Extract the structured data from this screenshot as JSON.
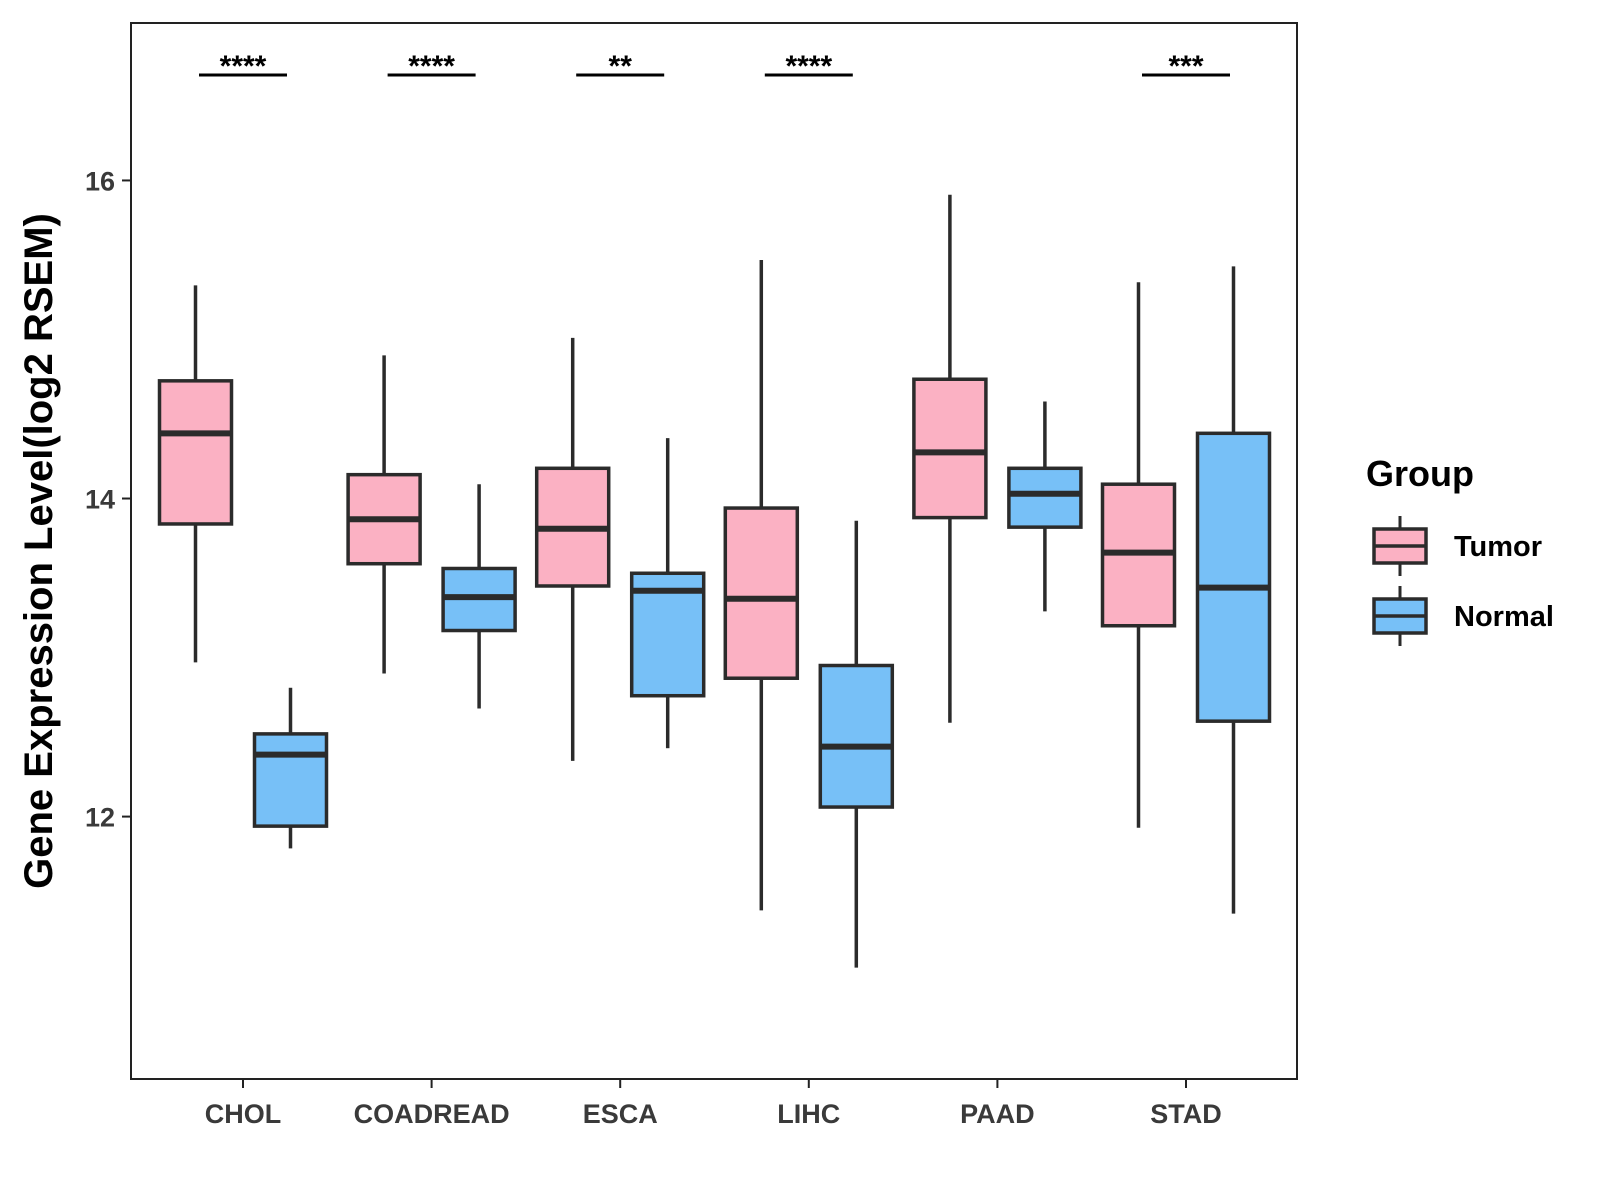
{
  "chart_data": {
    "type": "boxplot",
    "title": "",
    "xlabel": "",
    "ylabel": "Gene Expression Level(log2 RSEM)",
    "ylim": [
      10.35,
      16.99
    ],
    "yticks": [
      12,
      14,
      16
    ],
    "grid": false,
    "legend_position": "right",
    "legend_title": "Group",
    "categories": [
      "CHOL",
      "COADREAD",
      "ESCA",
      "LIHC",
      "PAAD",
      "STAD"
    ],
    "series": [
      {
        "name": "Tumor",
        "color": "#fbb1c3",
        "boxes": [
          {
            "lower_whisker": 12.97,
            "q1": 13.84,
            "median": 14.41,
            "q3": 14.74,
            "upper_whisker": 15.34
          },
          {
            "lower_whisker": 12.9,
            "q1": 13.59,
            "median": 13.87,
            "q3": 14.15,
            "upper_whisker": 14.9
          },
          {
            "lower_whisker": 12.35,
            "q1": 13.45,
            "median": 13.81,
            "q3": 14.19,
            "upper_whisker": 15.01
          },
          {
            "lower_whisker": 11.41,
            "q1": 12.87,
            "median": 13.37,
            "q3": 13.94,
            "upper_whisker": 15.5
          },
          {
            "lower_whisker": 12.59,
            "q1": 13.88,
            "median": 14.29,
            "q3": 14.75,
            "upper_whisker": 15.91
          },
          {
            "lower_whisker": 11.93,
            "q1": 13.2,
            "median": 13.66,
            "q3": 14.09,
            "upper_whisker": 15.36
          }
        ]
      },
      {
        "name": "Normal",
        "color": "#77c0f7",
        "boxes": [
          {
            "lower_whisker": 11.8,
            "q1": 11.94,
            "median": 12.39,
            "q3": 12.52,
            "upper_whisker": 12.81
          },
          {
            "lower_whisker": 12.68,
            "q1": 13.17,
            "median": 13.38,
            "q3": 13.56,
            "upper_whisker": 14.09
          },
          {
            "lower_whisker": 12.43,
            "q1": 12.76,
            "median": 13.42,
            "q3": 13.53,
            "upper_whisker": 14.38
          },
          {
            "lower_whisker": 11.05,
            "q1": 12.06,
            "median": 12.44,
            "q3": 12.95,
            "upper_whisker": 13.86
          },
          {
            "lower_whisker": 13.29,
            "q1": 13.82,
            "median": 14.03,
            "q3": 14.19,
            "upper_whisker": 14.61
          },
          {
            "lower_whisker": 11.39,
            "q1": 12.6,
            "median": 13.44,
            "q3": 14.41,
            "upper_whisker": 15.46
          }
        ]
      }
    ],
    "significance": [
      {
        "category": "CHOL",
        "label": "****"
      },
      {
        "category": "COADREAD",
        "label": "****"
      },
      {
        "category": "ESCA",
        "label": "**"
      },
      {
        "category": "LIHC",
        "label": "****"
      },
      {
        "category": "PAAD",
        "label": ""
      },
      {
        "category": "STAD",
        "label": "***"
      }
    ]
  }
}
